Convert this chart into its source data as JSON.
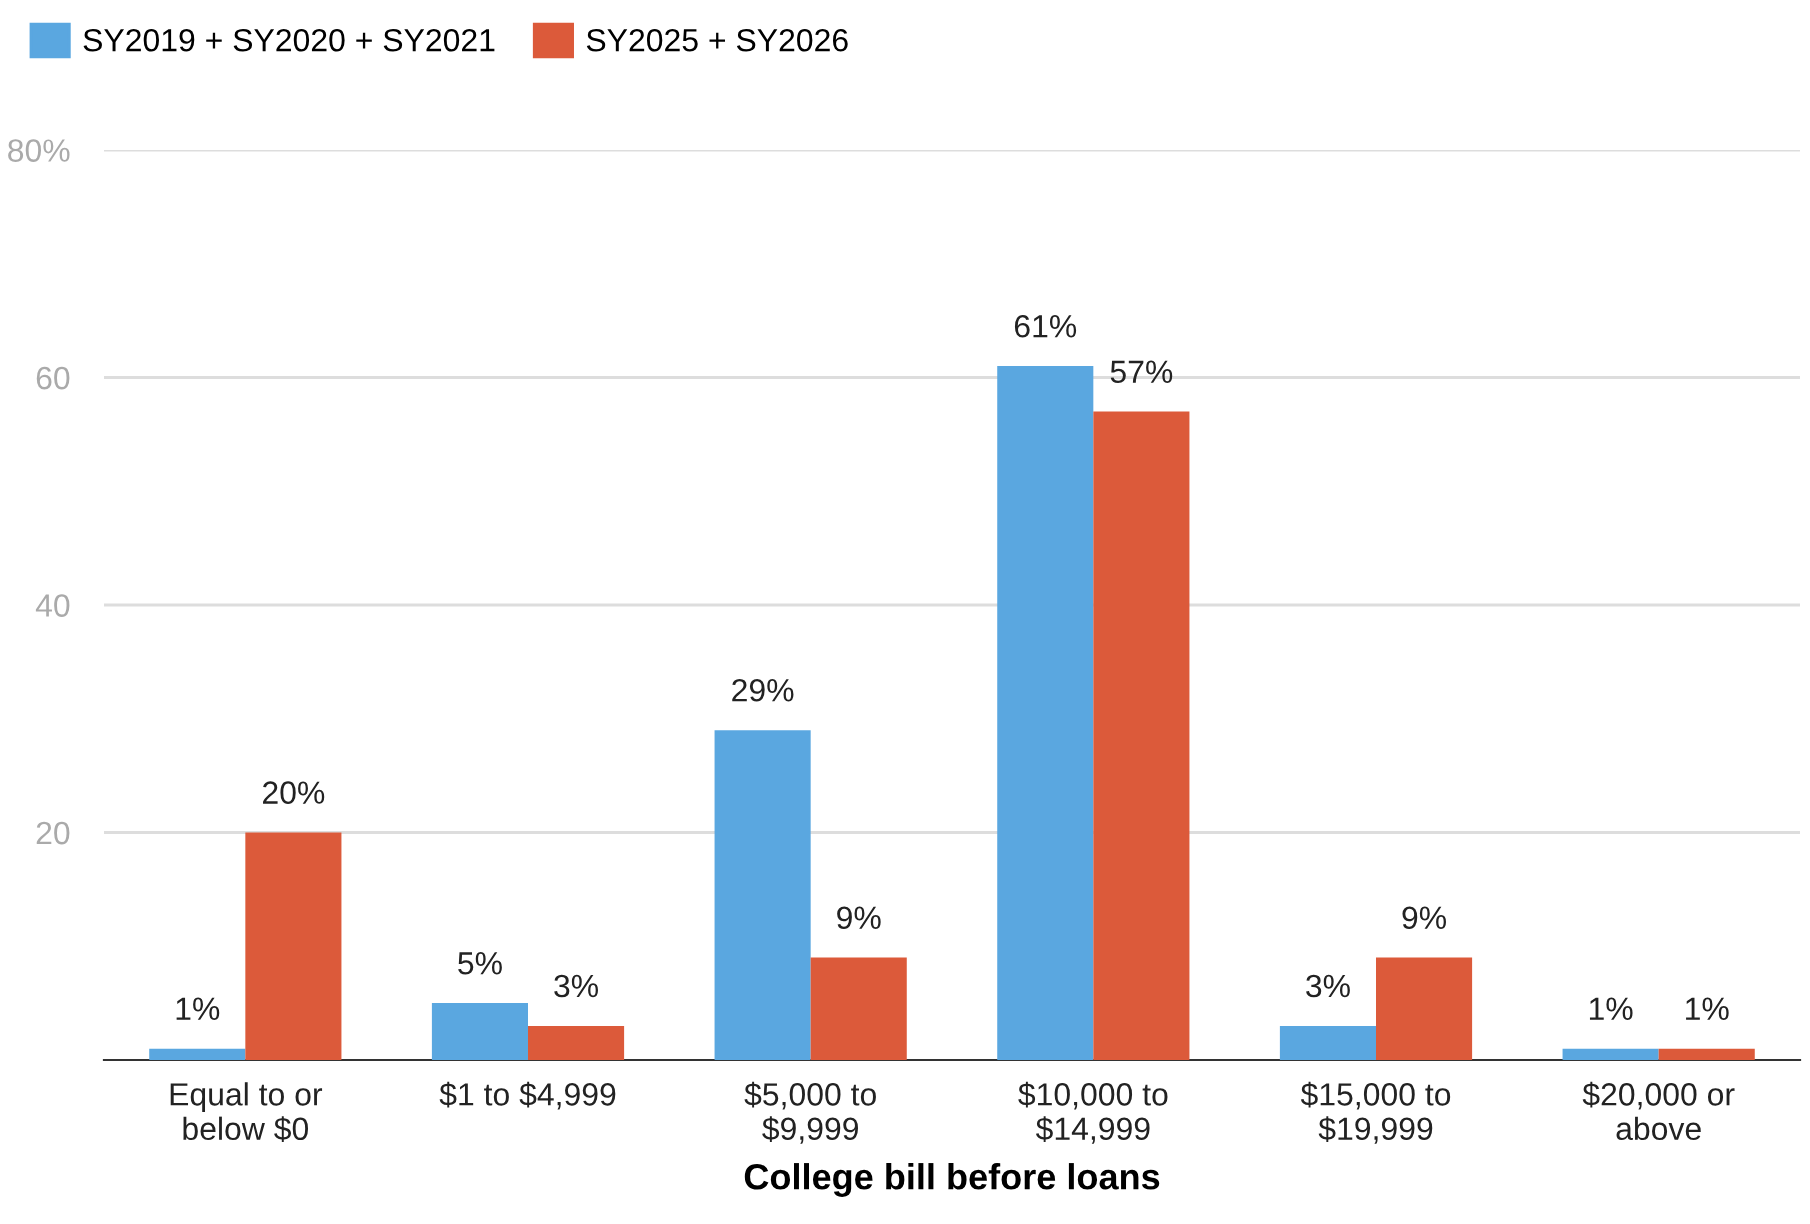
{
  "chart_data": {
    "type": "bar",
    "xlabel": "College bill before loans",
    "categories": [
      "Equal to or\nbelow $0",
      "$1 to $4,999",
      "$5,000 to\n$9,999",
      "$10,000 to\n$14,999",
      "$15,000 to\n$19,999",
      "$20,000 or\nabove"
    ],
    "series": [
      {
        "name": "SY2019 + SY2020 + SY2021",
        "color": "#5aa7e0",
        "values": [
          1,
          5,
          29,
          61,
          3,
          1
        ],
        "value_labels": [
          "1%",
          "5%",
          "29%",
          "61%",
          "3%",
          "1%"
        ]
      },
      {
        "name": "SY2025 + SY2026",
        "color": "#dc5a3a",
        "values": [
          20,
          3,
          9,
          57,
          9,
          1
        ],
        "value_labels": [
          "20%",
          "3%",
          "9%",
          "57%",
          "9%",
          "1%"
        ]
      }
    ],
    "ylim": [
      0,
      80
    ],
    "yticks": [
      20,
      40,
      60,
      {
        "value": 80,
        "label": "80%"
      }
    ],
    "grid": "y",
    "legend": "top left"
  }
}
